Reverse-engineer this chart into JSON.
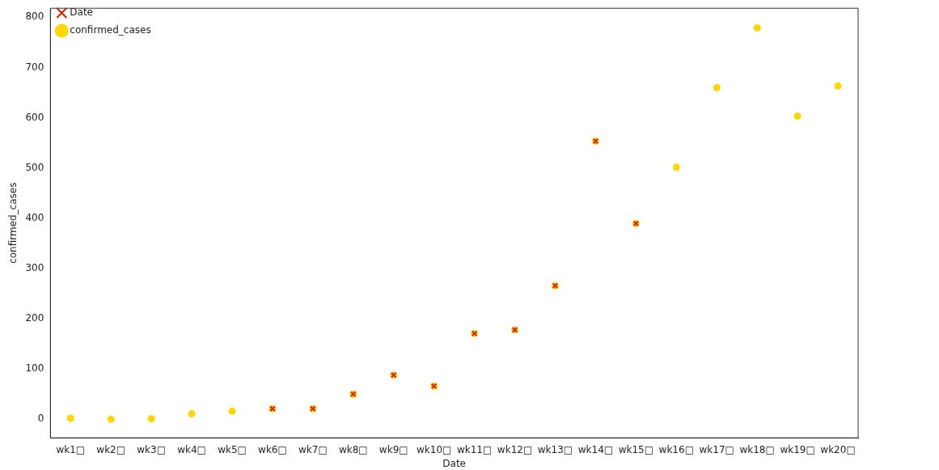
{
  "chart_data": {
    "type": "scatter",
    "xlabel": "Date",
    "ylabel": "confirmed_cases",
    "categories": [
      "wk1□",
      "wk2□",
      "wk3□",
      "wk4□",
      "wk5□",
      "wk6□",
      "wk7□",
      "wk8□",
      "wk9□",
      "wk10□",
      "wk11□",
      "wk12□",
      "wk13□",
      "wk14□",
      "wk15□",
      "wk16□",
      "wk17□",
      "wk18□",
      "wk19□",
      "wk20□"
    ],
    "series": [
      {
        "name": "confirmed_cases",
        "color": "#ffd700",
        "marker": "circle",
        "values": [
          1,
          -1,
          0,
          10,
          15,
          20,
          20,
          49,
          87,
          65,
          170,
          177,
          265,
          553,
          389,
          501,
          660,
          779,
          603,
          663
        ]
      },
      {
        "name": "Date",
        "color": "#d62000",
        "marker": "cross",
        "values": [
          null,
          null,
          null,
          null,
          null,
          20,
          20,
          49,
          87,
          65,
          170,
          177,
          265,
          553,
          389,
          null,
          null,
          null,
          null,
          null
        ]
      }
    ],
    "ylim": [
      -38,
      818
    ],
    "yticks": [
      0,
      100,
      200,
      300,
      400,
      500,
      600,
      700,
      800
    ],
    "grid": false,
    "legend": "top left"
  }
}
